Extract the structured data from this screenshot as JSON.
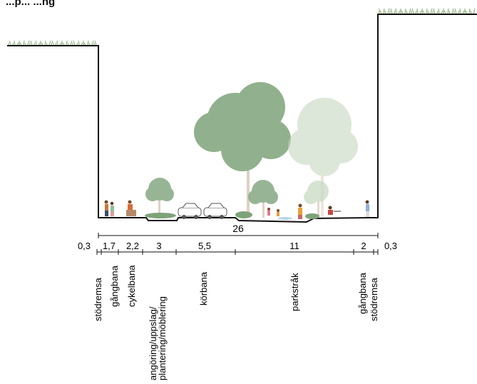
{
  "header": {
    "title": "...p... ...ng"
  },
  "section": {
    "total_width_label": "26",
    "segments": [
      {
        "width_label": "0,3",
        "name": "stödremsa"
      },
      {
        "width_label": "1,7",
        "name": "gångbana"
      },
      {
        "width_label": "2,2",
        "name": "cykelbana"
      },
      {
        "width_label": "3",
        "name": "angöring/uppslag/\nplantering/möblering"
      },
      {
        "width_label": "5,5",
        "name": "körbana"
      },
      {
        "width_label": "11",
        "name": "parkstråk"
      },
      {
        "width_label": "2",
        "name": "gångbana"
      },
      {
        "width_label": "0,3",
        "name": "stödremsa"
      }
    ]
  },
  "colors": {
    "ground_line": "#111111",
    "grass": "#7fa86a",
    "tree_dark": "#7ea37a",
    "tree_light": "#c7d8c0",
    "car": "#555555",
    "water": "#b9d6e8"
  }
}
